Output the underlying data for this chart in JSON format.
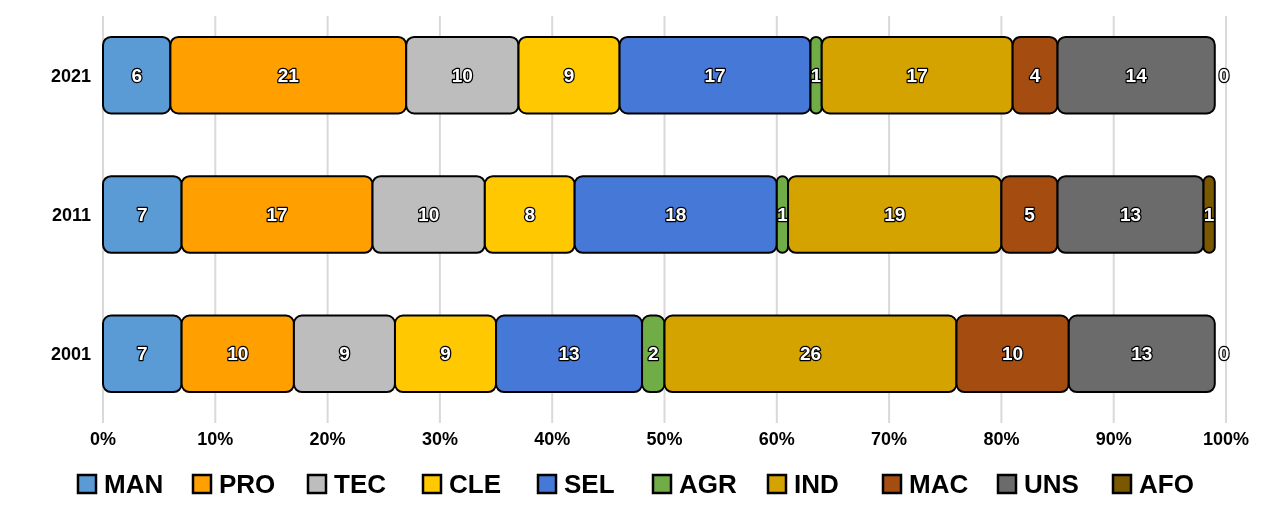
{
  "chart_data": {
    "type": "bar",
    "orientation": "horizontal",
    "stacked": true,
    "categories": [
      "2021",
      "2011",
      "2001"
    ],
    "series": [
      {
        "name": "MAN",
        "color": "#5b9bd5",
        "values": [
          6,
          7,
          7
        ]
      },
      {
        "name": "PRO",
        "color": "#ffa000",
        "values": [
          21,
          17,
          10
        ]
      },
      {
        "name": "TEC",
        "color": "#bdbdbd",
        "values": [
          10,
          10,
          9
        ]
      },
      {
        "name": "CLE",
        "color": "#ffc800",
        "values": [
          9,
          8,
          9
        ]
      },
      {
        "name": "SEL",
        "color": "#4678d8",
        "values": [
          17,
          18,
          13
        ]
      },
      {
        "name": "AGR",
        "color": "#70ad47",
        "values": [
          1,
          1,
          2
        ]
      },
      {
        "name": "IND",
        "color": "#d4a300",
        "values": [
          17,
          19,
          26
        ]
      },
      {
        "name": "MAC",
        "color": "#a54c10",
        "values": [
          4,
          5,
          10
        ]
      },
      {
        "name": "UNS",
        "color": "#6b6b6b",
        "values": [
          14,
          13,
          13
        ]
      },
      {
        "name": "AFO",
        "color": "#7a5800",
        "values": [
          0,
          1,
          0
        ]
      }
    ],
    "xlim": [
      0,
      100
    ],
    "xticks": [
      {
        "value": 0,
        "label": "0%"
      },
      {
        "value": 10,
        "label": "10%"
      },
      {
        "value": 20,
        "label": "20%"
      },
      {
        "value": 30,
        "label": "30%"
      },
      {
        "value": 40,
        "label": "40%"
      },
      {
        "value": 50,
        "label": "50%"
      },
      {
        "value": 60,
        "label": "60%"
      },
      {
        "value": 70,
        "label": "70%"
      },
      {
        "value": 80,
        "label": "80%"
      },
      {
        "value": 90,
        "label": "90%"
      },
      {
        "value": 100,
        "label": "100%"
      }
    ],
    "grid": "x",
    "legend": "bottom",
    "data_labels": true
  }
}
